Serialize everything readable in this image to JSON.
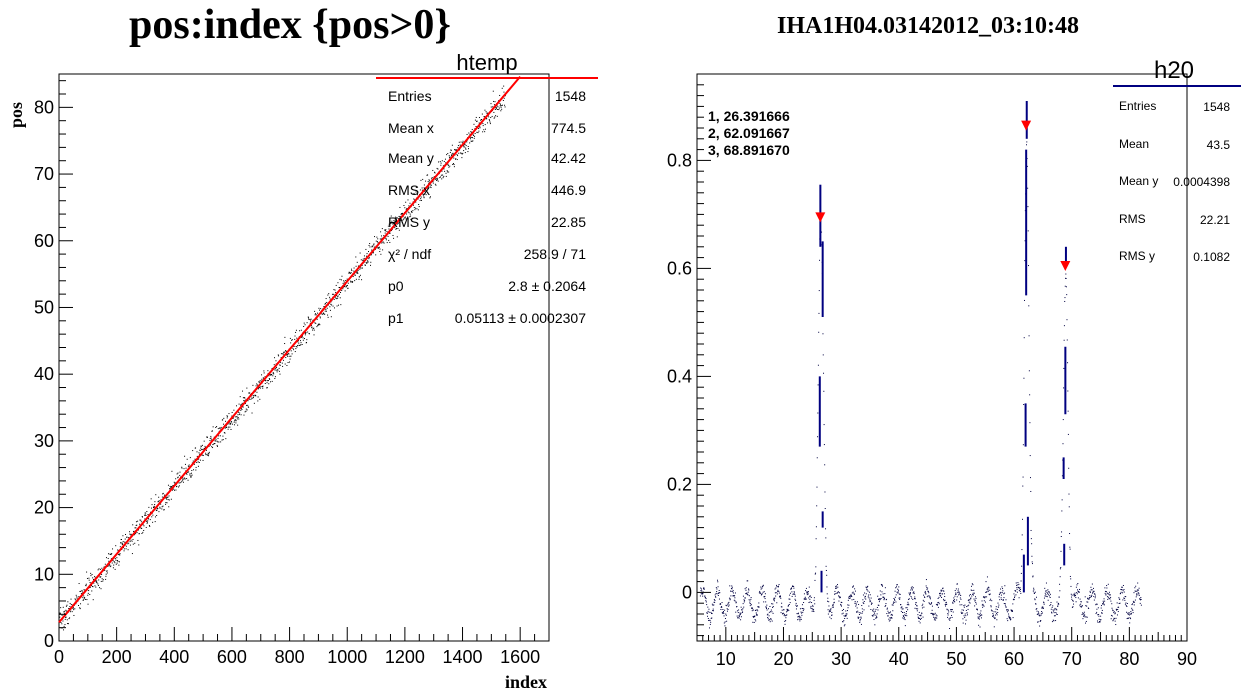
{
  "colors": {
    "fit": "#ff0000",
    "markers": "#ff0000",
    "hist": "#000080",
    "points": "#000000",
    "axis": "#000000"
  },
  "chart_data": [
    {
      "type": "scatter",
      "title": "pos:index {pos>0}",
      "xlabel": "index",
      "ylabel": "pos",
      "xlim": [
        0,
        1700
      ],
      "ylim": [
        0,
        85
      ],
      "grid": false,
      "x_ticks": [
        0,
        200,
        400,
        600,
        800,
        1000,
        1200,
        1400,
        1600
      ],
      "y_ticks": [
        0,
        10,
        20,
        30,
        40,
        50,
        60,
        70,
        80
      ],
      "entries": 1548,
      "fit": {
        "type": "line",
        "p0": 2.8,
        "p1": 0.05113,
        "x_range": [
          0,
          1600
        ]
      },
      "stats": {
        "name": "htemp",
        "rows": [
          {
            "label": "Entries",
            "value": "1548"
          },
          {
            "label": "Mean x",
            "value": "774.5"
          },
          {
            "label": "Mean y",
            "value": "42.42"
          },
          {
            "label": "RMS x",
            "value": "446.9"
          },
          {
            "label": "RMS y",
            "value": "22.85"
          },
          {
            "label": "χ² / ndf",
            "value": "258.9 / 71"
          },
          {
            "label": "p0",
            "value": "2.8 ± 0.2064"
          },
          {
            "label": "p1",
            "value": "0.05113 ± 0.0002307"
          }
        ]
      }
    },
    {
      "type": "line",
      "title": "IHA1H04.03142012_03:10:48",
      "xlabel": "",
      "ylabel": "",
      "xlim": [
        5,
        90
      ],
      "ylim": [
        -0.09,
        0.96
      ],
      "grid": false,
      "x_ticks": [
        10,
        20,
        30,
        40,
        50,
        60,
        70,
        80,
        90
      ],
      "y_ticks": [
        0,
        0.2,
        0.4,
        0.6,
        0.8
      ],
      "x_range_data": [
        5.5,
        82
      ],
      "baseline": {
        "center": -0.02,
        "amplitude": 0.025,
        "period": 2.6
      },
      "peaks": [
        {
          "x": 26.391666,
          "height": 0.7,
          "width": 0.45
        },
        {
          "x": 62.091667,
          "height": 0.87,
          "width": 0.4
        },
        {
          "x": 68.89167,
          "height": 0.61,
          "width": 0.4
        }
      ],
      "error_bars": [
        {
          "x": 26.3,
          "y0": 0.27,
          "y1": 0.4
        },
        {
          "x": 26.4,
          "y0": 0.64,
          "y1": 0.755
        },
        {
          "x": 26.8,
          "y0": 0.51,
          "y1": 0.65
        },
        {
          "x": 26.8,
          "y0": 0.12,
          "y1": 0.15
        },
        {
          "x": 26.6,
          "y0": 0.0,
          "y1": 0.04
        },
        {
          "x": 62.0,
          "y0": 0.27,
          "y1": 0.35
        },
        {
          "x": 62.1,
          "y0": 0.55,
          "y1": 0.82
        },
        {
          "x": 62.2,
          "y0": 0.84,
          "y1": 0.91
        },
        {
          "x": 62.4,
          "y0": 0.05,
          "y1": 0.14
        },
        {
          "x": 61.7,
          "y0": 0.0,
          "y1": 0.07
        },
        {
          "x": 68.9,
          "y0": 0.33,
          "y1": 0.455
        },
        {
          "x": 69.0,
          "y0": 0.61,
          "y1": 0.64
        },
        {
          "x": 68.6,
          "y0": 0.21,
          "y1": 0.25
        },
        {
          "x": 68.7,
          "y0": 0.05,
          "y1": 0.09
        }
      ],
      "peak_labels": [
        "1, 26.391666",
        "2, 62.091667",
        "3, 68.891670"
      ],
      "stats": {
        "name": "h20",
        "rows": [
          {
            "label": "Entries",
            "value": "1548"
          },
          {
            "label": "Mean",
            "value": "43.5"
          },
          {
            "label": "Mean y",
            "value": "0.0004398"
          },
          {
            "label": "RMS",
            "value": "22.21"
          },
          {
            "label": "RMS y",
            "value": "0.1082"
          }
        ]
      }
    }
  ]
}
